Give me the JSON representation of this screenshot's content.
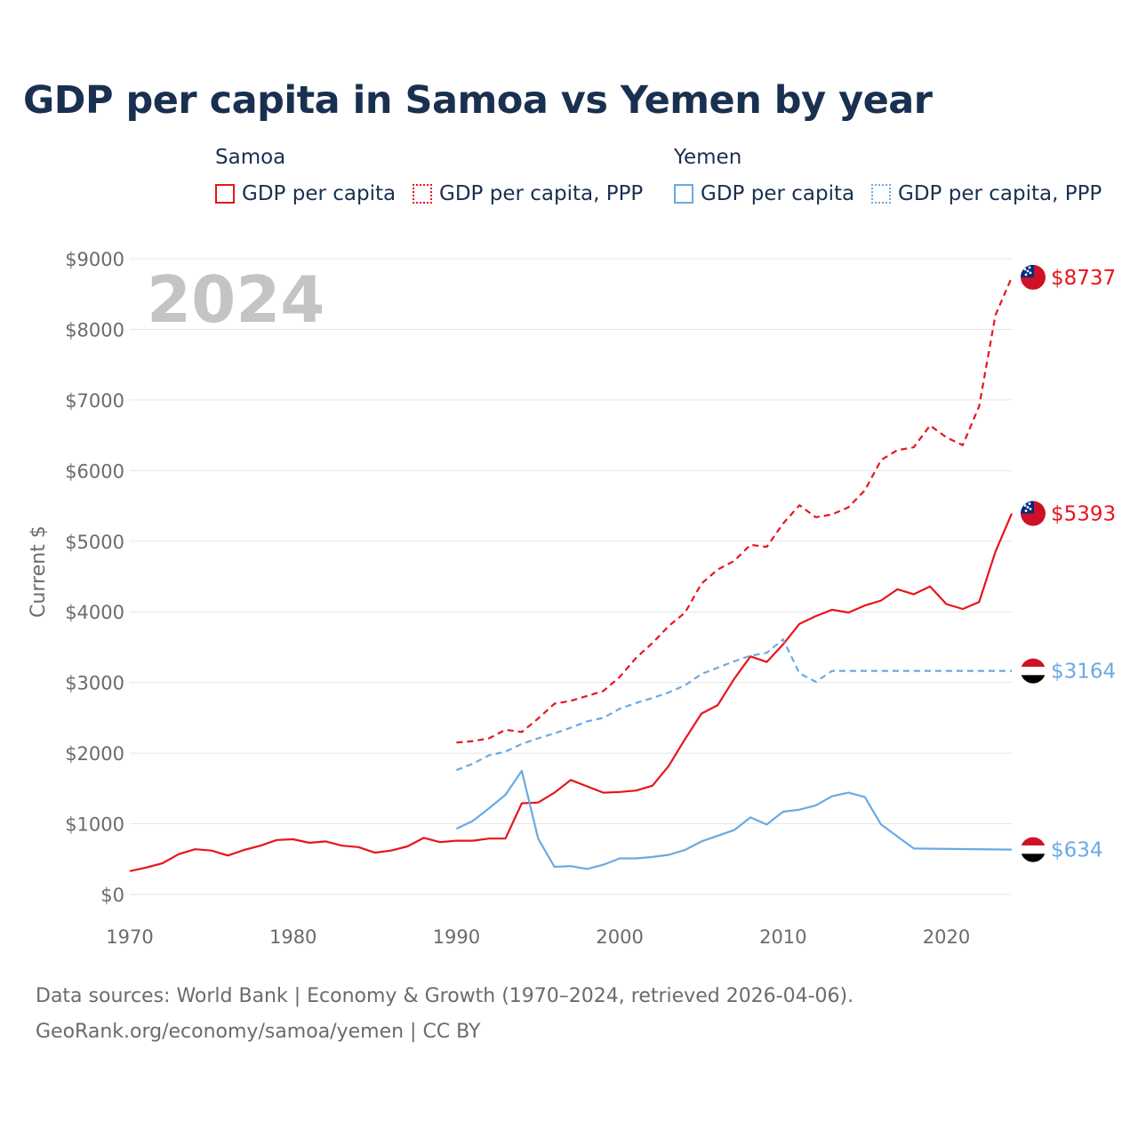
{
  "title": "GDP per capita in Samoa vs Yemen by year",
  "legend": {
    "groups": [
      {
        "name": "Samoa",
        "items": [
          {
            "label": "GDP per capita",
            "style": "solid"
          },
          {
            "label": "GDP per capita, PPP",
            "style": "dotted"
          }
        ],
        "color": "#e8141c"
      },
      {
        "name": "Yemen",
        "items": [
          {
            "label": "GDP per capita",
            "style": "solid"
          },
          {
            "label": "GDP per capita, PPP",
            "style": "dotted"
          }
        ],
        "color": "#6aaae2"
      }
    ]
  },
  "source": {
    "line1": "Data sources: World Bank | Economy & Growth (1970–2024, retrieved 2026-04-06).",
    "line2": "GeoRank.org/economy/samoa/yemen | CC BY"
  },
  "chart_data": {
    "type": "line",
    "title": "GDP per capita in Samoa vs Yemen by year",
    "year_watermark": "2024",
    "xlabel": "",
    "ylabel": "Current $",
    "xlim": [
      1970,
      2024
    ],
    "ylim": [
      0,
      9000
    ],
    "x_ticks": [
      1970,
      1980,
      1990,
      2000,
      2010,
      2020
    ],
    "y_ticks": [
      0,
      1000,
      2000,
      3000,
      4000,
      5000,
      6000,
      7000,
      8000,
      9000
    ],
    "y_tick_labels": [
      "$0",
      "$1000",
      "$2000",
      "$3000",
      "$4000",
      "$5000",
      "$6000",
      "$7000",
      "$8000",
      "$9000"
    ],
    "grid": true,
    "series": [
      {
        "name": "Samoa GDP per capita",
        "country": "Samoa",
        "color": "#e8141c",
        "dash": "solid",
        "end_label": "$5393",
        "x": [
          1970,
          1971,
          1972,
          1973,
          1974,
          1975,
          1976,
          1977,
          1978,
          1979,
          1980,
          1981,
          1982,
          1983,
          1984,
          1985,
          1986,
          1987,
          1988,
          1989,
          1990,
          1991,
          1992,
          1993,
          1994,
          1995,
          1996,
          1997,
          1998,
          1999,
          2000,
          2001,
          2002,
          2003,
          2004,
          2005,
          2006,
          2007,
          2008,
          2009,
          2010,
          2011,
          2012,
          2013,
          2014,
          2015,
          2016,
          2017,
          2018,
          2019,
          2020,
          2021,
          2022,
          2023,
          2024
        ],
        "values": [
          330,
          380,
          440,
          570,
          640,
          620,
          550,
          630,
          690,
          770,
          780,
          730,
          750,
          690,
          670,
          590,
          620,
          680,
          800,
          740,
          760,
          760,
          790,
          790,
          1290,
          1300,
          1440,
          1620,
          1530,
          1440,
          1450,
          1470,
          1540,
          1820,
          2200,
          2560,
          2680,
          3050,
          3370,
          3290,
          3540,
          3830,
          3940,
          4030,
          3990,
          4090,
          4160,
          4320,
          4250,
          4360,
          4110,
          4040,
          4140,
          4850,
          5393
        ]
      },
      {
        "name": "Samoa GDP per capita, PPP",
        "country": "Samoa",
        "color": "#e8141c",
        "dash": "dashed",
        "end_label": "$8737",
        "x": [
          1990,
          1991,
          1992,
          1993,
          1994,
          1995,
          1996,
          1997,
          1998,
          1999,
          2000,
          2001,
          2002,
          2003,
          2004,
          2005,
          2006,
          2007,
          2008,
          2009,
          2010,
          2011,
          2012,
          2013,
          2014,
          2015,
          2016,
          2017,
          2018,
          2019,
          2020,
          2021,
          2022,
          2023,
          2024
        ],
        "values": [
          2150,
          2170,
          2210,
          2330,
          2300,
          2490,
          2700,
          2740,
          2810,
          2880,
          3080,
          3350,
          3560,
          3800,
          3990,
          4400,
          4600,
          4720,
          4950,
          4920,
          5250,
          5510,
          5340,
          5380,
          5480,
          5720,
          6150,
          6290,
          6330,
          6640,
          6470,
          6360,
          6910,
          8200,
          8737
        ]
      },
      {
        "name": "Yemen GDP per capita",
        "country": "Yemen",
        "color": "#6aaae2",
        "dash": "solid",
        "end_label": "$634",
        "x": [
          1990,
          1991,
          1992,
          1993,
          1994,
          1995,
          1996,
          1997,
          1998,
          1999,
          2000,
          2001,
          2002,
          2003,
          2004,
          2005,
          2006,
          2007,
          2008,
          2009,
          2010,
          2011,
          2012,
          2013,
          2014,
          2015,
          2016,
          2017,
          2018,
          2024
        ],
        "values": [
          930,
          1040,
          1220,
          1410,
          1750,
          790,
          390,
          400,
          360,
          420,
          510,
          510,
          530,
          560,
          630,
          750,
          830,
          910,
          1090,
          990,
          1170,
          1200,
          1260,
          1390,
          1440,
          1380,
          990,
          820,
          650,
          634
        ]
      },
      {
        "name": "Yemen GDP per capita, PPP",
        "country": "Yemen",
        "color": "#6aaae2",
        "dash": "dashed",
        "end_label": "$3164",
        "x": [
          1990,
          1991,
          1992,
          1993,
          1994,
          1995,
          1996,
          1997,
          1998,
          1999,
          2000,
          2001,
          2002,
          2003,
          2004,
          2005,
          2006,
          2007,
          2008,
          2009,
          2010,
          2011,
          2012,
          2013,
          2024
        ],
        "values": [
          1760,
          1850,
          1970,
          2020,
          2130,
          2210,
          2280,
          2360,
          2450,
          2500,
          2630,
          2710,
          2780,
          2860,
          2960,
          3120,
          3210,
          3300,
          3380,
          3420,
          3610,
          3130,
          3010,
          3164,
          3164
        ]
      }
    ]
  }
}
